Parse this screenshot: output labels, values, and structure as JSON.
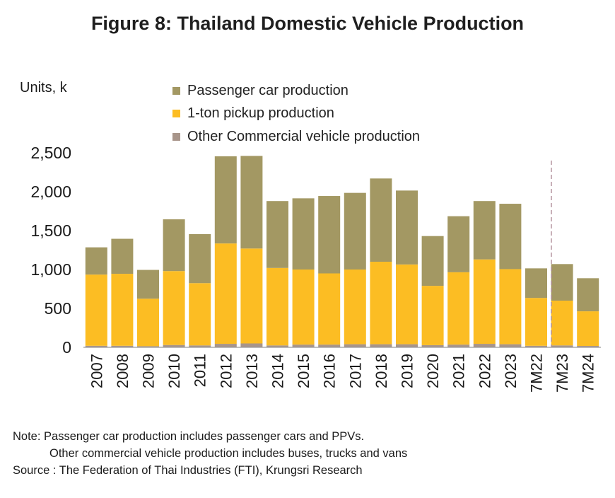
{
  "title": "Figure 8: Thailand Domestic Vehicle Production",
  "chart_data": {
    "type": "bar",
    "stacked": true,
    "title": "Figure 8: Thailand Domestic Vehicle Production",
    "ylabel": "Units, k",
    "xlabel": "",
    "ylim": [
      0,
      2500
    ],
    "yticks": [
      "0",
      "500",
      "1,000",
      "1,500",
      "2,000",
      "2,500"
    ],
    "ytick_values": [
      0,
      500,
      1000,
      1500,
      2000,
      2500
    ],
    "grid": false,
    "legend_position": "top",
    "categories": [
      "2007",
      "2008",
      "2009",
      "2010",
      "2011",
      "2012",
      "2013",
      "2014",
      "2015",
      "2016",
      "2017",
      "2018",
      "2019",
      "2020",
      "2021",
      "2022",
      "2023",
      "7M22",
      "7M23",
      "7M24"
    ],
    "series": [
      {
        "name": "Other Commercial vehicle production",
        "color": "#a8958a",
        "values": [
          20,
          20,
          15,
          30,
          25,
          45,
          50,
          25,
          35,
          35,
          40,
          40,
          40,
          28,
          35,
          45,
          40,
          20,
          25,
          18
        ]
      },
      {
        "name": "1-ton pickup production",
        "color": "#fcbd23",
        "values": [
          915,
          925,
          610,
          950,
          800,
          1290,
          1220,
          995,
          965,
          915,
          960,
          1060,
          1025,
          762,
          930,
          1085,
          965,
          615,
          575,
          445
        ]
      },
      {
        "name": "Passenger car production",
        "color": "#a39863",
        "values": [
          350,
          450,
          370,
          665,
          630,
          1120,
          1190,
          860,
          915,
          995,
          985,
          1070,
          950,
          640,
          720,
          750,
          840,
          380,
          470,
          425
        ]
      }
    ],
    "legend_order": [
      "Passenger car production",
      "1-ton pickup production",
      "Other Commercial vehicle production"
    ],
    "separator_after_category": "2023"
  },
  "notes": {
    "line1": "Note: Passenger car production includes passenger cars and PPVs.",
    "line2": "Other commercial vehicle production includes buses, trucks and vans",
    "line3": "Source : The Federation of Thai Industries (FTI), Krungsri Research"
  }
}
